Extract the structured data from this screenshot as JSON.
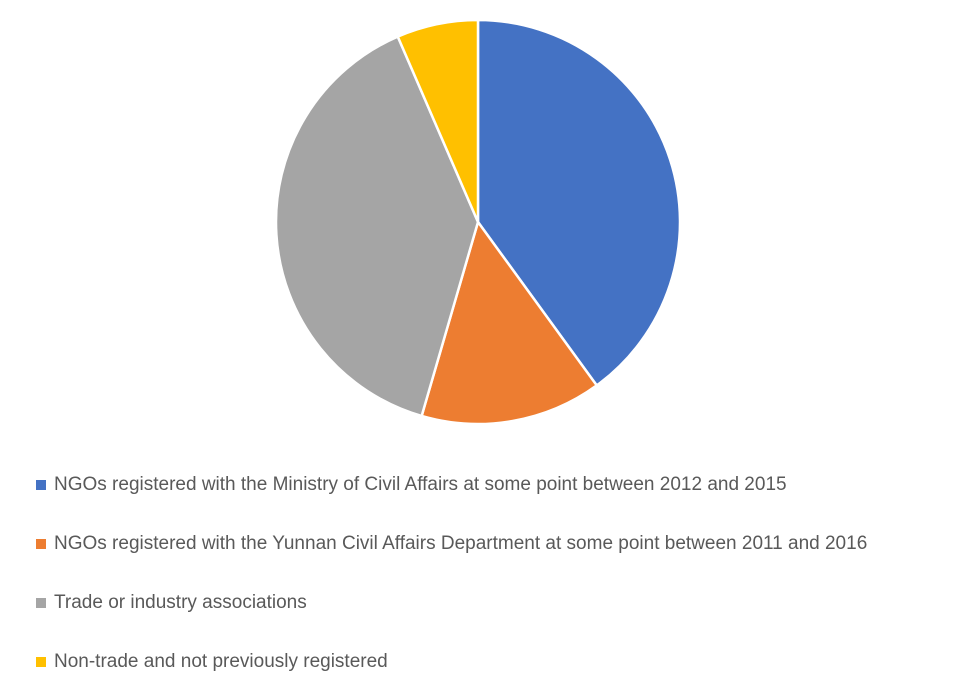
{
  "chart_data": {
    "type": "pie",
    "title": "",
    "legend_position": "bottom",
    "slices": [
      {
        "label": "NGOs registered with the Ministry of Civil Affairs at some point between 2012 and 2015",
        "value": 40.0,
        "color": "#4472C4"
      },
      {
        "label": "NGOs registered with the Yunnan Civil Affairs Department at some point between 2011 and 2016",
        "value": 14.5,
        "color": "#ED7D31"
      },
      {
        "label": "Trade or industry associations",
        "value": 39.0,
        "color": "#A5A5A5"
      },
      {
        "label": "Non-trade and not previously registered",
        "value": 6.5,
        "color": "#FFC000"
      }
    ]
  }
}
